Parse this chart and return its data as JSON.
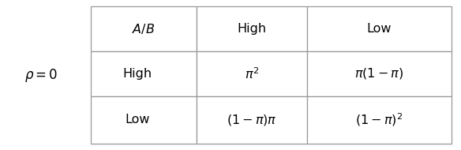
{
  "rho_label": "$\\rho=0$",
  "col_headers": [
    "$A/B$",
    "High",
    "Low"
  ],
  "row_labels": [
    "High",
    "Low"
  ],
  "cells": [
    [
      "$\\pi^{2}$",
      "$\\pi(1-\\pi)$"
    ],
    [
      "$(1-\\pi)\\pi$",
      "$(1-\\pi)^{2}$"
    ]
  ],
  "border_color": "#999999",
  "bg_color": "#ffffff",
  "text_color": "#000000",
  "font_size": 11.5
}
